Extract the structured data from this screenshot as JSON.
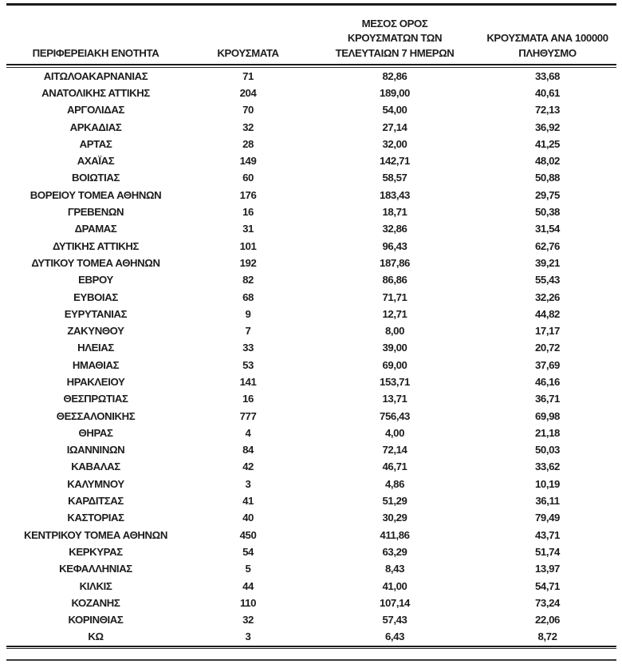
{
  "table": {
    "columns": [
      {
        "id": "region",
        "lines": [
          "ΠΕΡΙΦΕΡΕΙΑΚΗ ΕΝΟΤΗΤΑ"
        ]
      },
      {
        "id": "cases",
        "lines": [
          "ΚΡΟΥΣΜΑΤΑ"
        ]
      },
      {
        "id": "avg7",
        "lines": [
          "ΜΕΣΟΣ ΟΡΟΣ",
          "ΚΡΟΥΣΜΑΤΩΝ ΤΩΝ",
          "ΤΕΛΕΥΤΑΙΩΝ 7 ΗΜΕΡΩΝ"
        ]
      },
      {
        "id": "per100k",
        "lines": [
          "ΚΡΟΥΣΜΑΤΑ ΑΝΑ 100000",
          "ΠΛΗΘΥΣΜΟ"
        ]
      }
    ],
    "rows": [
      [
        "ΑΙΤΩΛΟΑΚΑΡΝΑΝΙΑΣ",
        "71",
        "82,86",
        "33,68"
      ],
      [
        "ΑΝΑΤΟΛΙΚΗΣ ΑΤΤΙΚΗΣ",
        "204",
        "189,00",
        "40,61"
      ],
      [
        "ΑΡΓΟΛΙΔΑΣ",
        "70",
        "54,00",
        "72,13"
      ],
      [
        "ΑΡΚΑΔΙΑΣ",
        "32",
        "27,14",
        "36,92"
      ],
      [
        "ΑΡΤΑΣ",
        "28",
        "32,00",
        "41,25"
      ],
      [
        "ΑΧΑΪΑΣ",
        "149",
        "142,71",
        "48,02"
      ],
      [
        "ΒΟΙΩΤΙΑΣ",
        "60",
        "58,57",
        "50,88"
      ],
      [
        "ΒΟΡΕΙΟΥ ΤΟΜΕΑ ΑΘΗΝΩΝ",
        "176",
        "183,43",
        "29,75"
      ],
      [
        "ΓΡΕΒΕΝΩΝ",
        "16",
        "18,71",
        "50,38"
      ],
      [
        "ΔΡΑΜΑΣ",
        "31",
        "32,86",
        "31,54"
      ],
      [
        "ΔΥΤΙΚΗΣ ΑΤΤΙΚΗΣ",
        "101",
        "96,43",
        "62,76"
      ],
      [
        "ΔΥΤΙΚΟΥ ΤΟΜΕΑ ΑΘΗΝΩΝ",
        "192",
        "187,86",
        "39,21"
      ],
      [
        "ΕΒΡΟΥ",
        "82",
        "86,86",
        "55,43"
      ],
      [
        "ΕΥΒΟΙΑΣ",
        "68",
        "71,71",
        "32,26"
      ],
      [
        "ΕΥΡΥΤΑΝΙΑΣ",
        "9",
        "12,71",
        "44,82"
      ],
      [
        "ΖΑΚΥΝΘΟΥ",
        "7",
        "8,00",
        "17,17"
      ],
      [
        "ΗΛΕΙΑΣ",
        "33",
        "39,00",
        "20,72"
      ],
      [
        "ΗΜΑΘΙΑΣ",
        "53",
        "69,00",
        "37,69"
      ],
      [
        "ΗΡΑΚΛΕΙΟΥ",
        "141",
        "153,71",
        "46,16"
      ],
      [
        "ΘΕΣΠΡΩΤΙΑΣ",
        "16",
        "13,71",
        "36,71"
      ],
      [
        "ΘΕΣΣΑΛΟΝΙΚΗΣ",
        "777",
        "756,43",
        "69,98"
      ],
      [
        "ΘΗΡΑΣ",
        "4",
        "4,00",
        "21,18"
      ],
      [
        "ΙΩΑΝΝΙΝΩΝ",
        "84",
        "72,14",
        "50,03"
      ],
      [
        "ΚΑΒΑΛΑΣ",
        "42",
        "46,71",
        "33,62"
      ],
      [
        "ΚΑΛΥΜΝΟΥ",
        "3",
        "4,86",
        "10,19"
      ],
      [
        "ΚΑΡΔΙΤΣΑΣ",
        "41",
        "51,29",
        "36,11"
      ],
      [
        "ΚΑΣΤΟΡΙΑΣ",
        "40",
        "30,29",
        "79,49"
      ],
      [
        "ΚΕΝΤΡΙΚΟΥ ΤΟΜΕΑ ΑΘΗΝΩΝ",
        "450",
        "411,86",
        "43,71"
      ],
      [
        "ΚΕΡΚΥΡΑΣ",
        "54",
        "63,29",
        "51,74"
      ],
      [
        "ΚΕΦΑΛΛΗΝΙΑΣ",
        "5",
        "8,43",
        "13,97"
      ],
      [
        "ΚΙΛΚΙΣ",
        "44",
        "41,00",
        "54,71"
      ],
      [
        "ΚΟΖΑΝΗΣ",
        "110",
        "107,14",
        "73,24"
      ],
      [
        "ΚΟΡΙΝΘΙΑΣ",
        "32",
        "57,43",
        "22,06"
      ],
      [
        "ΚΩ",
        "3",
        "6,43",
        "8,72"
      ]
    ]
  },
  "colors": {
    "text": "#1d1d1d",
    "rule": "#1b1b1b",
    "background": "#ffffff"
  }
}
